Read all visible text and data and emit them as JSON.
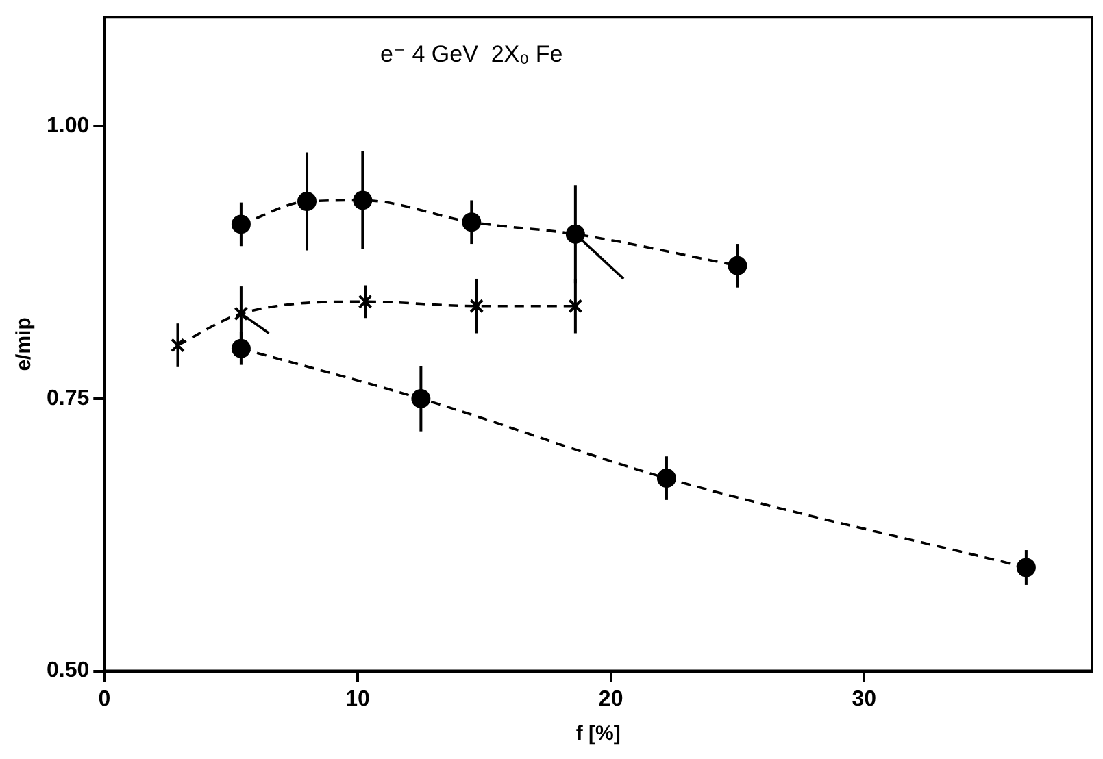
{
  "chart_data": {
    "type": "line",
    "title": "e⁻ 4 GeV  2X₀ Fe",
    "xlabel": "f [%]",
    "ylabel": "e/mip",
    "xlim": [
      0,
      39
    ],
    "xticks": [
      0,
      10,
      20,
      30
    ],
    "ylim": [
      0.5,
      1.1
    ],
    "yticks": [
      {
        "value": 0.5,
        "label": "0.50"
      },
      {
        "value": 0.75,
        "label": "0.75"
      },
      {
        "value": 1.0,
        "label": "1.00"
      }
    ],
    "grid": false,
    "legend": false,
    "line_style": "dashed",
    "series": [
      {
        "color": "#000000",
        "marker": "circle",
        "x": [
          5.4,
          8.0,
          10.2,
          14.5,
          18.6,
          25.0
        ],
        "values": [
          0.91,
          0.931,
          0.932,
          0.912,
          0.901,
          0.872
        ],
        "errors": [
          0.02,
          0.045,
          0.045,
          0.02,
          0.045,
          0.02
        ]
      },
      {
        "color": "#000000",
        "marker": "cross",
        "x": [
          2.9,
          5.4,
          10.3,
          14.7,
          18.6
        ],
        "values": [
          0.799,
          0.828,
          0.839,
          0.835,
          0.835
        ],
        "errors": [
          0.02,
          0.025,
          0.015,
          0.025,
          0.025
        ]
      },
      {
        "color": "#000000",
        "marker": "circle",
        "x": [
          5.4,
          12.5,
          22.2,
          36.4
        ],
        "values": [
          0.796,
          0.75,
          0.677,
          0.595
        ],
        "errors": [
          0.015,
          0.03,
          0.02,
          0.016
        ]
      },
      {
        "color": "#000000",
        "marker": "none",
        "line_style": "solid",
        "x": [
          18.6,
          20.5
        ],
        "values": [
          0.901,
          0.86
        ]
      },
      {
        "color": "#000000",
        "marker": "none",
        "line_style": "solid",
        "x": [
          5.4,
          6.5
        ],
        "values": [
          0.828,
          0.81
        ]
      }
    ]
  }
}
